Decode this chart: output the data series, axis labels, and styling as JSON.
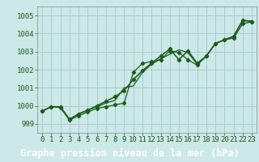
{
  "title": "Graphe pression niveau de la mer (hPa)",
  "background_color": "#cce8e8",
  "plot_bg_color": "#cce8e8",
  "grid_color": "#aacccc",
  "line_color": "#1a5c1a",
  "spine_color": "#888888",
  "xlabel_bg": "#1a6b1a",
  "xlabel_fg": "#ffffff",
  "xlim": [
    -0.5,
    23.5
  ],
  "ylim": [
    998.5,
    1005.5
  ],
  "yticks": [
    999,
    1000,
    1001,
    1002,
    1003,
    1004,
    1005
  ],
  "xtick_labels": [
    "0",
    "1",
    "2",
    "3",
    "4",
    "5",
    "6",
    "7",
    "8",
    "9",
    "10",
    "11",
    "12",
    "13",
    "14",
    "15",
    "16",
    "17",
    "18",
    "19",
    "20",
    "21",
    "22",
    "23"
  ],
  "series": [
    [
      999.7,
      999.95,
      999.9,
      999.2,
      999.45,
      999.65,
      999.85,
      999.95,
      1000.05,
      1000.15,
      1001.85,
      1002.35,
      1002.45,
      1002.55,
      1003.05,
      1002.95,
      1002.55,
      1002.25,
      1002.75,
      1003.45,
      1003.65,
      1003.75,
      1004.55,
      1004.65
    ],
    [
      999.7,
      999.95,
      999.95,
      999.25,
      999.55,
      999.75,
      999.95,
      1000.15,
      1000.3,
      1001.0,
      1001.1,
      1001.85,
      1002.3,
      1002.6,
      1002.85,
      1003.1,
      1002.95,
      1002.3,
      1002.75,
      1003.45,
      1003.65,
      1003.85,
      1004.7,
      1004.7
    ],
    [
      999.7,
      999.95,
      999.95,
      999.25,
      999.55,
      999.75,
      1000.0,
      1000.25,
      1000.5,
      1000.85,
      1001.45,
      1001.95,
      1002.35,
      1002.75,
      1003.15,
      1002.55,
      1003.05,
      1002.35,
      1002.75,
      1003.45,
      1003.65,
      1003.85,
      1004.75,
      1004.65
    ],
    [
      999.7,
      999.95,
      999.95,
      999.25,
      999.55,
      999.75,
      1000.0,
      1000.25,
      1000.5,
      1000.85,
      1001.45,
      1001.95,
      1002.35,
      1002.75,
      1003.15,
      1002.55,
      1003.05,
      1002.35,
      1002.75,
      1003.45,
      1003.65,
      1003.85,
      1004.75,
      1004.65
    ]
  ],
  "marker_series": [
    0,
    2
  ],
  "tick_fontsize": 6.5,
  "xlabel_fontsize": 8.5
}
